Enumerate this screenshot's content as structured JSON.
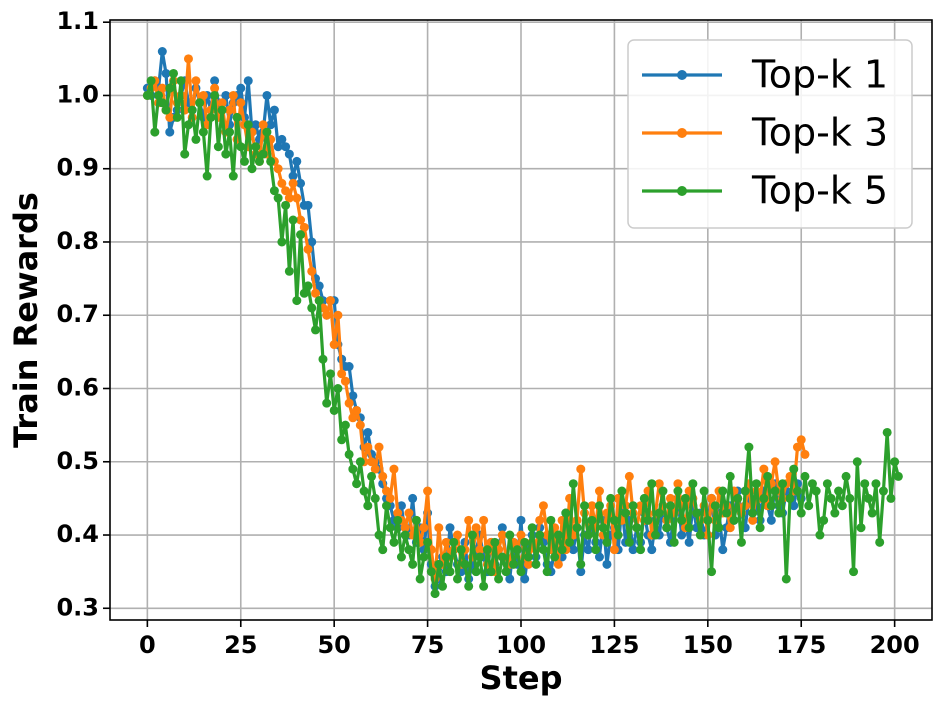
{
  "chart_data": {
    "type": "line",
    "x_label": "Step",
    "y_label": "Train Rewards",
    "x": [
      0,
      1,
      2,
      3,
      4,
      5,
      6,
      7,
      8,
      9,
      10,
      11,
      12,
      13,
      14,
      15,
      16,
      17,
      18,
      19,
      20,
      21,
      22,
      23,
      24,
      25,
      26,
      27,
      28,
      29,
      30,
      31,
      32,
      33,
      34,
      35,
      36,
      37,
      38,
      39,
      40,
      41,
      42,
      43,
      44,
      45,
      46,
      47,
      48,
      49,
      50,
      51,
      52,
      53,
      54,
      55,
      56,
      57,
      58,
      59,
      60,
      61,
      62,
      63,
      64,
      65,
      66,
      67,
      68,
      69,
      70,
      71,
      72,
      73,
      74,
      75,
      76,
      77,
      78,
      79,
      80,
      81,
      82,
      83,
      84,
      85,
      86,
      87,
      88,
      89,
      90,
      91,
      92,
      93,
      94,
      95,
      96,
      97,
      98,
      99,
      100,
      101,
      102,
      103,
      104,
      105,
      106,
      107,
      108,
      109,
      110,
      111,
      112,
      113,
      114,
      115,
      116,
      117,
      118,
      119,
      120,
      121,
      122,
      123,
      124,
      125,
      126,
      127,
      128,
      129,
      130,
      131,
      132,
      133,
      134,
      135,
      136,
      137,
      138,
      139,
      140,
      141,
      142,
      143,
      144,
      145,
      146,
      147,
      148,
      149,
      150,
      151,
      152,
      153,
      154,
      155,
      156,
      157,
      158,
      159,
      160,
      161,
      162,
      163,
      164,
      165,
      166,
      167,
      168,
      169,
      170,
      171,
      172,
      173,
      174,
      175,
      176,
      177,
      178,
      179,
      180,
      181,
      182,
      183,
      184,
      185,
      186,
      187,
      188,
      189,
      190,
      191,
      192,
      193,
      194,
      195,
      196,
      197,
      198,
      199,
      200,
      201
    ],
    "series": [
      {
        "name": "Top-k 1",
        "color": "#1f77b4",
        "values": [
          1.01,
          1.0,
          1.02,
          1.01,
          1.06,
          1.03,
          0.95,
          0.97,
          0.98,
          1.0,
          1.02,
          0.99,
          0.98,
          1.01,
          0.99,
          0.97,
          1.0,
          0.98,
          1.02,
          0.99,
          0.98,
          1.0,
          0.96,
          0.99,
          1.0,
          1.01,
          0.97,
          1.02,
          0.95,
          0.96,
          0.94,
          0.95,
          1.0,
          0.96,
          0.98,
          0.93,
          0.94,
          0.93,
          0.92,
          0.89,
          0.91,
          0.88,
          0.85,
          0.85,
          0.8,
          0.75,
          0.74,
          0.72,
          0.7,
          0.72,
          0.72,
          0.66,
          0.64,
          0.63,
          0.63,
          0.59,
          0.57,
          0.56,
          0.52,
          0.54,
          0.51,
          0.5,
          0.49,
          0.47,
          0.45,
          0.44,
          0.42,
          0.41,
          0.44,
          0.4,
          0.4,
          0.45,
          0.39,
          0.41,
          0.38,
          0.43,
          0.36,
          0.33,
          0.34,
          0.37,
          0.35,
          0.41,
          0.38,
          0.36,
          0.35,
          0.39,
          0.34,
          0.36,
          0.38,
          0.4,
          0.37,
          0.35,
          0.39,
          0.36,
          0.38,
          0.41,
          0.37,
          0.34,
          0.39,
          0.36,
          0.42,
          0.34,
          0.38,
          0.4,
          0.37,
          0.41,
          0.39,
          0.36,
          0.35,
          0.38,
          0.4,
          0.37,
          0.43,
          0.39,
          0.38,
          0.41,
          0.35,
          0.4,
          0.38,
          0.42,
          0.39,
          0.37,
          0.42,
          0.36,
          0.4,
          0.41,
          0.38,
          0.44,
          0.39,
          0.42,
          0.38,
          0.41,
          0.39,
          0.43,
          0.4,
          0.38,
          0.42,
          0.4,
          0.44,
          0.41,
          0.39,
          0.43,
          0.45,
          0.4,
          0.42,
          0.39,
          0.44,
          0.41,
          0.43,
          0.4,
          0.42,
          0.45,
          0.4,
          0.43,
          0.38,
          0.41,
          0.44,
          0.42,
          0.46,
          0.43,
          0.41,
          0.45,
          0.43,
          0.44,
          0.42,
          0.46,
          0.44,
          0.42,
          0.47,
          0.44,
          0.43,
          0.46,
          0.45,
          0.44,
          0.47,
          0.45,
          null,
          null,
          null,
          null,
          null,
          null,
          null,
          null,
          null,
          null,
          null,
          null,
          null,
          null,
          null,
          null,
          null,
          null,
          null,
          null,
          null,
          null,
          null,
          null,
          null,
          null
        ]
      },
      {
        "name": "Top-k 3",
        "color": "#ff7f0e",
        "values": [
          1.0,
          1.01,
          1.02,
          0.99,
          1.01,
          0.98,
          0.97,
          1.02,
          0.99,
          1.0,
          0.98,
          1.05,
          0.97,
          1.02,
          0.99,
          1.0,
          0.96,
          0.98,
          1.01,
          0.97,
          0.99,
          0.95,
          0.98,
          1.0,
          0.94,
          0.99,
          0.96,
          0.93,
          0.95,
          0.92,
          0.91,
          0.96,
          0.92,
          0.94,
          0.91,
          0.9,
          0.88,
          0.87,
          0.86,
          0.88,
          0.86,
          0.83,
          0.82,
          0.79,
          0.76,
          0.73,
          0.72,
          0.71,
          0.7,
          0.72,
          0.66,
          0.7,
          0.62,
          0.61,
          0.58,
          0.56,
          0.57,
          0.55,
          0.5,
          0.52,
          0.5,
          0.49,
          0.52,
          0.48,
          0.46,
          0.45,
          0.49,
          0.43,
          0.42,
          0.41,
          0.43,
          0.4,
          0.42,
          0.39,
          0.41,
          0.46,
          0.38,
          0.34,
          0.41,
          0.36,
          0.39,
          0.37,
          0.38,
          0.4,
          0.36,
          0.38,
          0.42,
          0.37,
          0.41,
          0.38,
          0.42,
          0.36,
          0.39,
          0.35,
          0.38,
          0.4,
          0.37,
          0.36,
          0.39,
          0.38,
          0.4,
          0.37,
          0.36,
          0.39,
          0.38,
          0.42,
          0.44,
          0.4,
          0.38,
          0.41,
          0.36,
          0.42,
          0.38,
          0.45,
          0.4,
          0.42,
          0.49,
          0.43,
          0.4,
          0.44,
          0.41,
          0.46,
          0.4,
          0.43,
          0.44,
          0.38,
          0.45,
          0.42,
          0.44,
          0.48,
          0.43,
          0.41,
          0.44,
          0.42,
          0.46,
          0.4,
          0.43,
          0.47,
          0.44,
          0.42,
          0.45,
          0.43,
          0.47,
          0.44,
          0.41,
          0.46,
          0.45,
          0.43,
          0.42,
          0.44,
          0.4,
          0.45,
          0.42,
          0.46,
          0.43,
          0.44,
          0.41,
          0.46,
          0.45,
          0.43,
          0.44,
          0.47,
          0.42,
          0.46,
          0.45,
          0.49,
          0.44,
          0.47,
          0.5,
          0.46,
          0.45,
          0.47,
          0.48,
          0.46,
          0.52,
          0.53,
          0.51,
          null,
          null,
          null,
          null,
          null,
          null,
          null,
          null,
          null,
          null,
          null,
          null,
          null,
          null,
          null,
          null,
          null,
          null,
          null,
          null,
          null,
          null,
          null,
          null,
          null
        ]
      },
      {
        "name": "Top-k 5",
        "color": "#2ca02c",
        "values": [
          1.0,
          1.02,
          0.95,
          1.0,
          0.99,
          0.98,
          1.01,
          1.03,
          0.97,
          1.02,
          0.92,
          0.96,
          0.98,
          0.94,
          0.99,
          0.95,
          0.89,
          0.97,
          1.0,
          0.93,
          0.98,
          0.92,
          0.95,
          0.89,
          0.97,
          0.93,
          0.91,
          0.96,
          0.9,
          0.93,
          0.91,
          0.92,
          0.95,
          0.91,
          0.87,
          0.86,
          0.8,
          0.85,
          0.76,
          0.83,
          0.72,
          0.81,
          0.73,
          0.74,
          0.71,
          0.68,
          0.72,
          0.64,
          0.58,
          0.62,
          0.57,
          0.6,
          0.53,
          0.55,
          0.51,
          0.49,
          0.47,
          0.5,
          0.46,
          0.44,
          0.48,
          0.45,
          0.4,
          0.38,
          0.44,
          0.41,
          0.39,
          0.42,
          0.37,
          0.4,
          0.38,
          0.36,
          0.42,
          0.34,
          0.37,
          0.39,
          0.35,
          0.32,
          0.36,
          0.33,
          0.37,
          0.35,
          0.39,
          0.34,
          0.38,
          0.36,
          0.33,
          0.4,
          0.35,
          0.37,
          0.33,
          0.38,
          0.35,
          0.39,
          0.34,
          0.37,
          0.35,
          0.4,
          0.36,
          0.38,
          0.35,
          0.39,
          0.37,
          0.41,
          0.36,
          0.4,
          0.38,
          0.35,
          0.42,
          0.37,
          0.4,
          0.38,
          0.43,
          0.39,
          0.47,
          0.41,
          0.36,
          0.44,
          0.4,
          0.42,
          0.38,
          0.44,
          0.41,
          0.39,
          0.45,
          0.42,
          0.4,
          0.46,
          0.43,
          0.39,
          0.44,
          0.41,
          0.38,
          0.45,
          0.42,
          0.47,
          0.4,
          0.43,
          0.46,
          0.41,
          0.44,
          0.39,
          0.46,
          0.42,
          0.45,
          0.41,
          0.47,
          0.43,
          0.4,
          0.46,
          0.42,
          0.35,
          0.44,
          0.41,
          0.46,
          0.43,
          0.48,
          0.42,
          0.45,
          0.39,
          0.46,
          0.52,
          0.43,
          0.47,
          0.41,
          0.45,
          0.48,
          0.44,
          0.46,
          0.43,
          0.47,
          0.34,
          0.45,
          0.49,
          0.46,
          0.43,
          0.48,
          0.44,
          0.47,
          0.46,
          0.4,
          0.42,
          0.47,
          0.45,
          0.43,
          0.46,
          0.44,
          0.48,
          0.45,
          0.35,
          0.5,
          0.41,
          0.47,
          0.45,
          0.43,
          0.47,
          0.39,
          0.46,
          0.54,
          0.45,
          0.5,
          0.48
        ]
      }
    ],
    "xlim": [
      -10,
      210
    ],
    "ylim": [
      0.284,
      1.103
    ],
    "xticks": [
      0,
      25,
      50,
      75,
      100,
      125,
      150,
      175,
      200
    ],
    "yticks": [
      0.3,
      0.4,
      0.5,
      0.6,
      0.7,
      0.8,
      0.9,
      {
        "value": 1,
        "label": "1.0"
      },
      1.1
    ],
    "grid": true,
    "legend": "upper right"
  }
}
